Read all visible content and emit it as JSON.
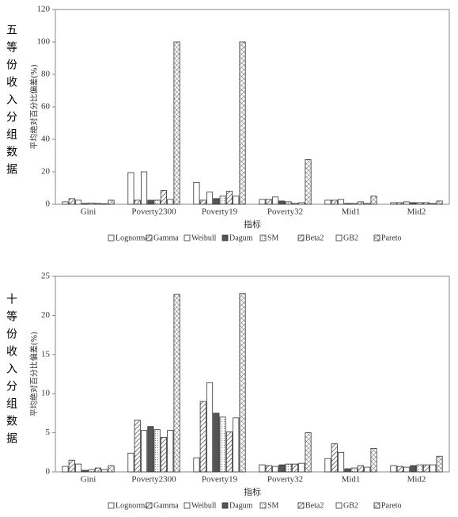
{
  "chart_data": [
    {
      "type": "bar",
      "panel_label": "五等份收入分组数据",
      "y_label": "平均绝对百分比偏差(%)",
      "x_label": "指标",
      "categories": [
        "Gini",
        "Poverty2300",
        "Poverty19",
        "Poverty32",
        "Mid1",
        "Mid2"
      ],
      "ylim": [
        0,
        120
      ],
      "yticks": [
        0,
        20,
        40,
        60,
        80,
        100,
        120
      ],
      "legend": "bottom",
      "series": [
        {
          "name": "Lognormal",
          "color": "#ffffff",
          "hatch": "none",
          "values": [
            1.5,
            19.5,
            13.5,
            3,
            2.5,
            1
          ]
        },
        {
          "name": "Gamma",
          "color": "#ffffff",
          "hatch": "diagonal",
          "values": [
            3.5,
            2.5,
            2.5,
            3,
            2.5,
            1
          ]
        },
        {
          "name": "Weibull",
          "color": "#ffffff",
          "hatch": "none",
          "values": [
            2.5,
            20,
            7.5,
            4.5,
            3,
            1.5
          ]
        },
        {
          "name": "Dagum",
          "color": "#555555",
          "hatch": "none",
          "values": [
            0.5,
            2.5,
            3.5,
            2,
            0.5,
            1
          ]
        },
        {
          "name": "SM",
          "color": "#ffffff",
          "hatch": "dots",
          "values": [
            0.8,
            2.5,
            5,
            1.5,
            0.5,
            1
          ]
        },
        {
          "name": "Beta2",
          "color": "#ffffff",
          "hatch": "diagonal",
          "values": [
            0.5,
            8.5,
            8,
            0.5,
            1.5,
            1
          ]
        },
        {
          "name": "GB2",
          "color": "#ffffff",
          "hatch": "none",
          "values": [
            0.3,
            3,
            5,
            1,
            0.5,
            0.5
          ]
        },
        {
          "name": "Pareto",
          "color": "#ffffff",
          "hatch": "cross",
          "values": [
            2.5,
            100,
            100,
            27.5,
            5,
            2
          ]
        }
      ]
    },
    {
      "type": "bar",
      "panel_label": "十等份收入分组数据",
      "y_label": "平均绝对百分比偏差(%)",
      "x_label": "指标",
      "categories": [
        "Gini",
        "Poverty2300",
        "Poverty19",
        "Poverty32",
        "Mid1",
        "Mid2"
      ],
      "ylim": [
        0,
        25
      ],
      "yticks": [
        0,
        5,
        10,
        15,
        20,
        25
      ],
      "legend": "bottom",
      "series": [
        {
          "name": "Lognormal",
          "color": "#ffffff",
          "hatch": "none",
          "values": [
            0.7,
            2.4,
            1.8,
            0.9,
            1.7,
            0.8
          ]
        },
        {
          "name": "Gamma",
          "color": "#ffffff",
          "hatch": "diagonal",
          "values": [
            1.5,
            6.6,
            9.0,
            0.8,
            3.6,
            0.7
          ]
        },
        {
          "name": "Weibull",
          "color": "#ffffff",
          "hatch": "none",
          "values": [
            1.0,
            5.3,
            11.4,
            0.7,
            2.5,
            0.6
          ]
        },
        {
          "name": "Dagum",
          "color": "#555555",
          "hatch": "none",
          "values": [
            0.2,
            5.8,
            7.5,
            0.9,
            0.4,
            0.8
          ]
        },
        {
          "name": "SM",
          "color": "#ffffff",
          "hatch": "dots",
          "values": [
            0.3,
            5.4,
            7.0,
            1.0,
            0.5,
            0.9
          ]
        },
        {
          "name": "Beta2",
          "color": "#ffffff",
          "hatch": "diagonal",
          "values": [
            0.5,
            4.4,
            5.1,
            1.0,
            0.8,
            0.9
          ]
        },
        {
          "name": "GB2",
          "color": "#ffffff",
          "hatch": "none",
          "values": [
            0.3,
            5.3,
            6.9,
            1.1,
            0.6,
            0.9
          ]
        },
        {
          "name": "Pareto",
          "color": "#ffffff",
          "hatch": "cross",
          "values": [
            0.8,
            22.7,
            22.8,
            5.0,
            3.0,
            2.0
          ]
        }
      ]
    }
  ]
}
